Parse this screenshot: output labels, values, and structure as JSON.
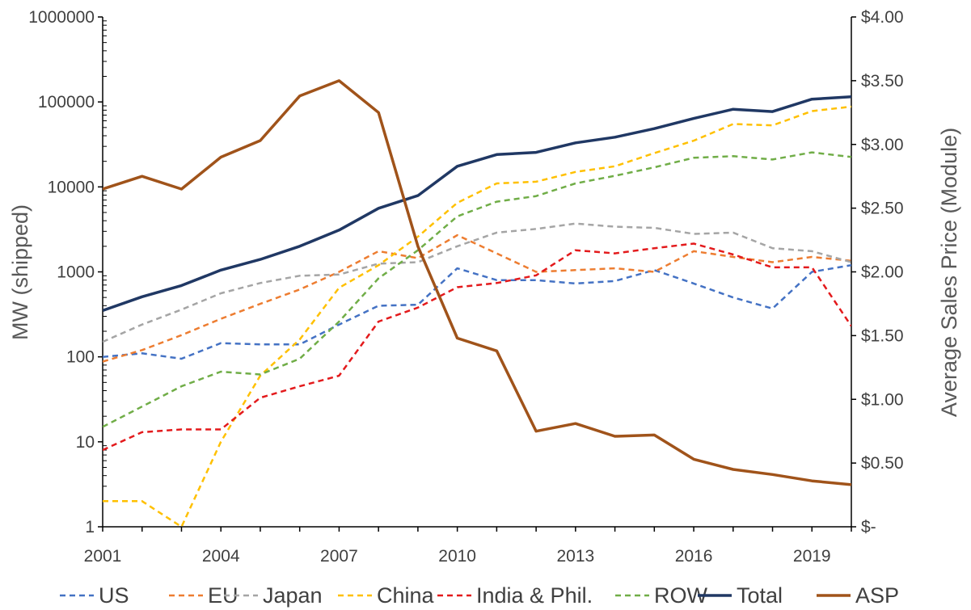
{
  "chart_data": {
    "type": "line",
    "title": "",
    "xlabel": "",
    "ylabel": "MW (shipped)",
    "y2label": "Average Sales Price (Module)",
    "x_range": [
      2001,
      2020
    ],
    "x_tick_values": [
      2001,
      2004,
      2007,
      2010,
      2013,
      2016,
      2019
    ],
    "x_tick_labels": [
      "2001",
      "2004",
      "2007",
      "2010",
      "2013",
      "2016",
      "2019"
    ],
    "y_scale": "log",
    "ylim": [
      1,
      1000000
    ],
    "y_tick_values": [
      1,
      10,
      100,
      1000,
      10000,
      100000,
      1000000
    ],
    "y_tick_labels": [
      "1",
      "10",
      "100",
      "1000",
      "10000",
      "100000",
      "1000000"
    ],
    "y2lim": [
      0,
      4
    ],
    "y2_tick_values": [
      0,
      0.5,
      1,
      1.5,
      2,
      2.5,
      3,
      3.5,
      4
    ],
    "y2_tick_labels": [
      "$-",
      "$0.50",
      "$1.00",
      "$1.50",
      "$2.00",
      "$2.50",
      "$3.00",
      "$3.50",
      "$4.00"
    ],
    "grid": false,
    "legend_position": "bottom",
    "x": [
      2001,
      2002,
      2003,
      2004,
      2005,
      2006,
      2007,
      2008,
      2009,
      2010,
      2011,
      2012,
      2013,
      2014,
      2015,
      2016,
      2017,
      2018,
      2019,
      2020
    ],
    "series": [
      {
        "name": "US",
        "axis": "left",
        "style": "dashed",
        "color": "#4472C4",
        "values": [
          100,
          110,
          95,
          145,
          140,
          140,
          240,
          400,
          410,
          1100,
          800,
          800,
          730,
          780,
          1050,
          730,
          500,
          370,
          1000,
          1200
        ]
      },
      {
        "name": "EU",
        "axis": "left",
        "style": "dashed",
        "color": "#ED7D31",
        "values": [
          88,
          120,
          180,
          280,
          420,
          620,
          1000,
          1750,
          1450,
          2700,
          1650,
          1000,
          1050,
          1100,
          1000,
          1750,
          1500,
          1300,
          1500,
          1350
        ]
      },
      {
        "name": "Japan",
        "axis": "left",
        "style": "dashed",
        "color": "#A5A5A5",
        "values": [
          150,
          240,
          360,
          560,
          740,
          900,
          930,
          1250,
          1300,
          2000,
          2900,
          3200,
          3700,
          3400,
          3300,
          2800,
          2900,
          1900,
          1750,
          1300
        ]
      },
      {
        "name": "China",
        "axis": "left",
        "style": "dashed",
        "color": "#FFC000",
        "values": [
          2,
          2,
          1,
          10,
          60,
          160,
          650,
          1200,
          2600,
          6500,
          11000,
          11500,
          15000,
          17500,
          25000,
          35000,
          55000,
          53000,
          78000,
          88000
        ]
      },
      {
        "name": "India & Phil.",
        "axis": "left",
        "style": "dashed",
        "color": "#E31A1C",
        "values": [
          8,
          13,
          14,
          14,
          33,
          45,
          60,
          260,
          380,
          660,
          740,
          910,
          1800,
          1650,
          1900,
          2150,
          1600,
          1130,
          1130,
          230
        ]
      },
      {
        "name": "ROW",
        "axis": "left",
        "style": "dashed",
        "color": "#70AD47",
        "values": [
          15,
          26,
          45,
          67,
          62,
          95,
          260,
          840,
          1800,
          4500,
          6700,
          7800,
          11000,
          13500,
          17000,
          22000,
          23000,
          21000,
          25500,
          22500
        ]
      },
      {
        "name": "Total",
        "axis": "left",
        "style": "solid",
        "color": "#203864",
        "values": [
          350,
          510,
          690,
          1050,
          1400,
          2000,
          3100,
          5600,
          7900,
          17500,
          24000,
          25500,
          33000,
          38500,
          48500,
          64000,
          82000,
          77000,
          108000,
          115000
        ]
      },
      {
        "name": "ASP",
        "axis": "right",
        "style": "solid",
        "color": "#A0531A",
        "values": [
          2.65,
          2.75,
          2.65,
          2.9,
          3.03,
          3.38,
          3.5,
          3.25,
          2.2,
          1.48,
          1.38,
          0.75,
          0.81,
          0.71,
          0.72,
          0.53,
          0.45,
          0.41,
          0.36,
          0.33
        ]
      }
    ]
  }
}
